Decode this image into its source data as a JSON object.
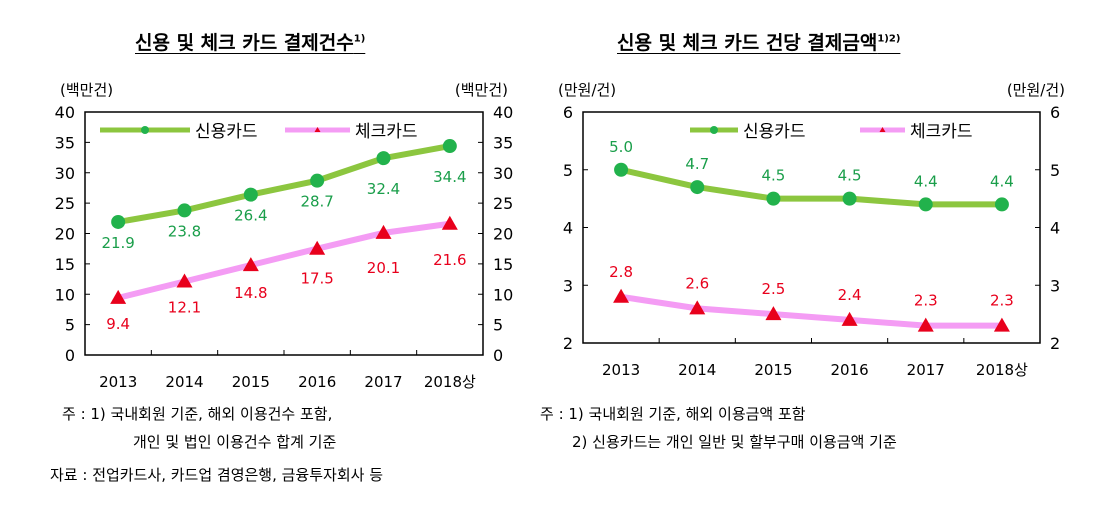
{
  "chart_data": [
    {
      "type": "line",
      "title": "신용 및 체크 카드 결제건수",
      "title_sup": "1)",
      "ylabel_left": "(백만건)",
      "ylabel_right": "(백만건)",
      "categories": [
        "2013",
        "2014",
        "2015",
        "2016",
        "2017",
        "2018상"
      ],
      "ylim": [
        0,
        40
      ],
      "yticks": [
        0,
        5,
        10,
        15,
        20,
        25,
        30,
        35,
        40
      ],
      "legend_position": "top",
      "grid": false,
      "series": [
        {
          "name": "신용카드",
          "values": [
            21.9,
            23.8,
            26.4,
            28.7,
            32.4,
            34.4
          ],
          "labels": [
            "21.9",
            "23.8",
            "26.4",
            "28.7",
            "32.4",
            "34.4"
          ],
          "line_color": "#8cc63f",
          "marker": "circle",
          "marker_color": "#22b24c",
          "label_color": "#1a9e4a"
        },
        {
          "name": "체크카드",
          "values": [
            9.4,
            12.1,
            14.8,
            17.5,
            20.1,
            21.6
          ],
          "labels": [
            "9.4",
            "12.1",
            "14.8",
            "17.5",
            "20.1",
            "21.6"
          ],
          "line_color": "#f49cf4",
          "marker": "triangle",
          "marker_color": "#e8001c",
          "label_color": "#e8001c"
        }
      ]
    },
    {
      "type": "line",
      "title": "신용 및 체크 카드 건당 결제금액",
      "title_sup": "1)2)",
      "ylabel_left": "(만원/건)",
      "ylabel_right": "(만원/건)",
      "categories": [
        "2013",
        "2014",
        "2015",
        "2016",
        "2017",
        "2018상"
      ],
      "ylim": [
        2,
        6
      ],
      "yticks": [
        2,
        3,
        4,
        5,
        6
      ],
      "legend_position": "top",
      "grid": false,
      "series": [
        {
          "name": "신용카드",
          "values": [
            5.0,
            4.7,
            4.5,
            4.5,
            4.4,
            4.4
          ],
          "labels": [
            "5.0",
            "4.7",
            "4.5",
            "4.5",
            "4.4",
            "4.4"
          ],
          "line_color": "#8cc63f",
          "marker": "circle",
          "marker_color": "#22b24c",
          "label_color": "#1a9e4a"
        },
        {
          "name": "체크카드",
          "values": [
            2.8,
            2.6,
            2.5,
            2.4,
            2.3,
            2.3
          ],
          "labels": [
            "2.8",
            "2.6",
            "2.5",
            "2.4",
            "2.3",
            "2.3"
          ],
          "line_color": "#f49cf4",
          "marker": "triangle",
          "marker_color": "#e8001c",
          "label_color": "#e8001c"
        }
      ]
    }
  ],
  "notes": {
    "left_1": "주 : 1) 국내회원 기준, 해외 이용건수 포함,",
    "left_2": "개인 및 법인 이용건수 합계 기준",
    "left_source": "자료 : 전업카드사, 카드업 겸영은행, 금융투자회사 등",
    "right_1": "주 : 1) 국내회원 기준, 해외 이용금액 포함",
    "right_2": "2) 신용카드는 개인 일반 및 할부구매 이용금액 기준"
  }
}
